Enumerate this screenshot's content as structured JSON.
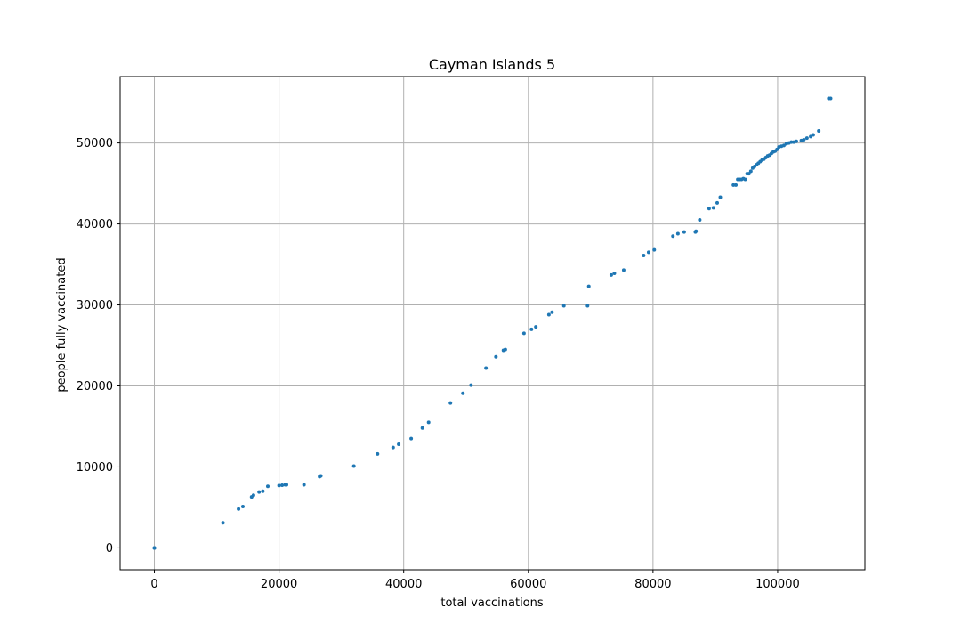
{
  "chart_data": {
    "type": "scatter",
    "title": "Cayman Islands 5",
    "xlabel": "total vaccinations",
    "ylabel": "people fully vaccinated",
    "xlim": [
      -5500,
      114000
    ],
    "ylim": [
      -2700,
      58200
    ],
    "xticks": [
      0,
      20000,
      40000,
      60000,
      80000,
      100000
    ],
    "xtick_labels": [
      "0",
      "20000",
      "40000",
      "60000",
      "80000",
      "100000"
    ],
    "yticks": [
      0,
      10000,
      20000,
      30000,
      40000,
      50000
    ],
    "ytick_labels": [
      "0",
      "10000",
      "20000",
      "30000",
      "40000",
      "50000"
    ],
    "grid": true,
    "marker_color": "#1f77b4",
    "series": [
      {
        "x": [
          0,
          0,
          11000,
          13500,
          14200,
          15600,
          15900,
          16800,
          17400,
          18200,
          20000,
          20500,
          21000,
          21200,
          24000,
          26500,
          26700,
          32000,
          35800,
          38300,
          39200,
          41200,
          43000,
          44000,
          47500,
          49500,
          50800,
          53200,
          54800,
          56000,
          56300,
          59300,
          60500,
          61200,
          63300,
          63800,
          65700,
          69500,
          69700,
          73300,
          73800,
          75300,
          78500,
          79300,
          80200,
          83200,
          84000,
          85000,
          86800,
          86900,
          87500,
          89000,
          89700,
          90300,
          90800,
          92900,
          93300,
          93600,
          93900,
          94200,
          94500,
          94800,
          95100,
          95400,
          95700,
          96000,
          96300,
          96600,
          96900,
          97200,
          97500,
          97800,
          98100,
          98400,
          98700,
          99000,
          99300,
          99600,
          99900,
          100200,
          100600,
          101000,
          101400,
          101800,
          102200,
          102600,
          103000,
          103800,
          104200,
          104700,
          105300,
          105700,
          106600,
          108200,
          108500
        ],
        "y": [
          0,
          0,
          3100,
          4800,
          5100,
          6300,
          6500,
          6900,
          7000,
          7600,
          7700,
          7750,
          7800,
          7800,
          7800,
          8800,
          8900,
          10100,
          11600,
          12400,
          12800,
          13500,
          14800,
          15500,
          17900,
          19100,
          20100,
          22200,
          23600,
          24400,
          24500,
          26500,
          27000,
          27300,
          28800,
          29100,
          29900,
          29900,
          32300,
          33700,
          33900,
          34300,
          36100,
          36500,
          36800,
          38500,
          38800,
          39000,
          39000,
          39100,
          40500,
          41900,
          42000,
          42600,
          43300,
          44800,
          44800,
          45500,
          45500,
          45500,
          45600,
          45500,
          46200,
          46200,
          46500,
          46900,
          47100,
          47300,
          47500,
          47700,
          47900,
          48000,
          48200,
          48400,
          48500,
          48700,
          48900,
          49000,
          49200,
          49500,
          49600,
          49700,
          49900,
          50000,
          50100,
          50100,
          50200,
          50300,
          50400,
          50600,
          50800,
          51000,
          51500,
          55500,
          55500
        ]
      }
    ]
  }
}
